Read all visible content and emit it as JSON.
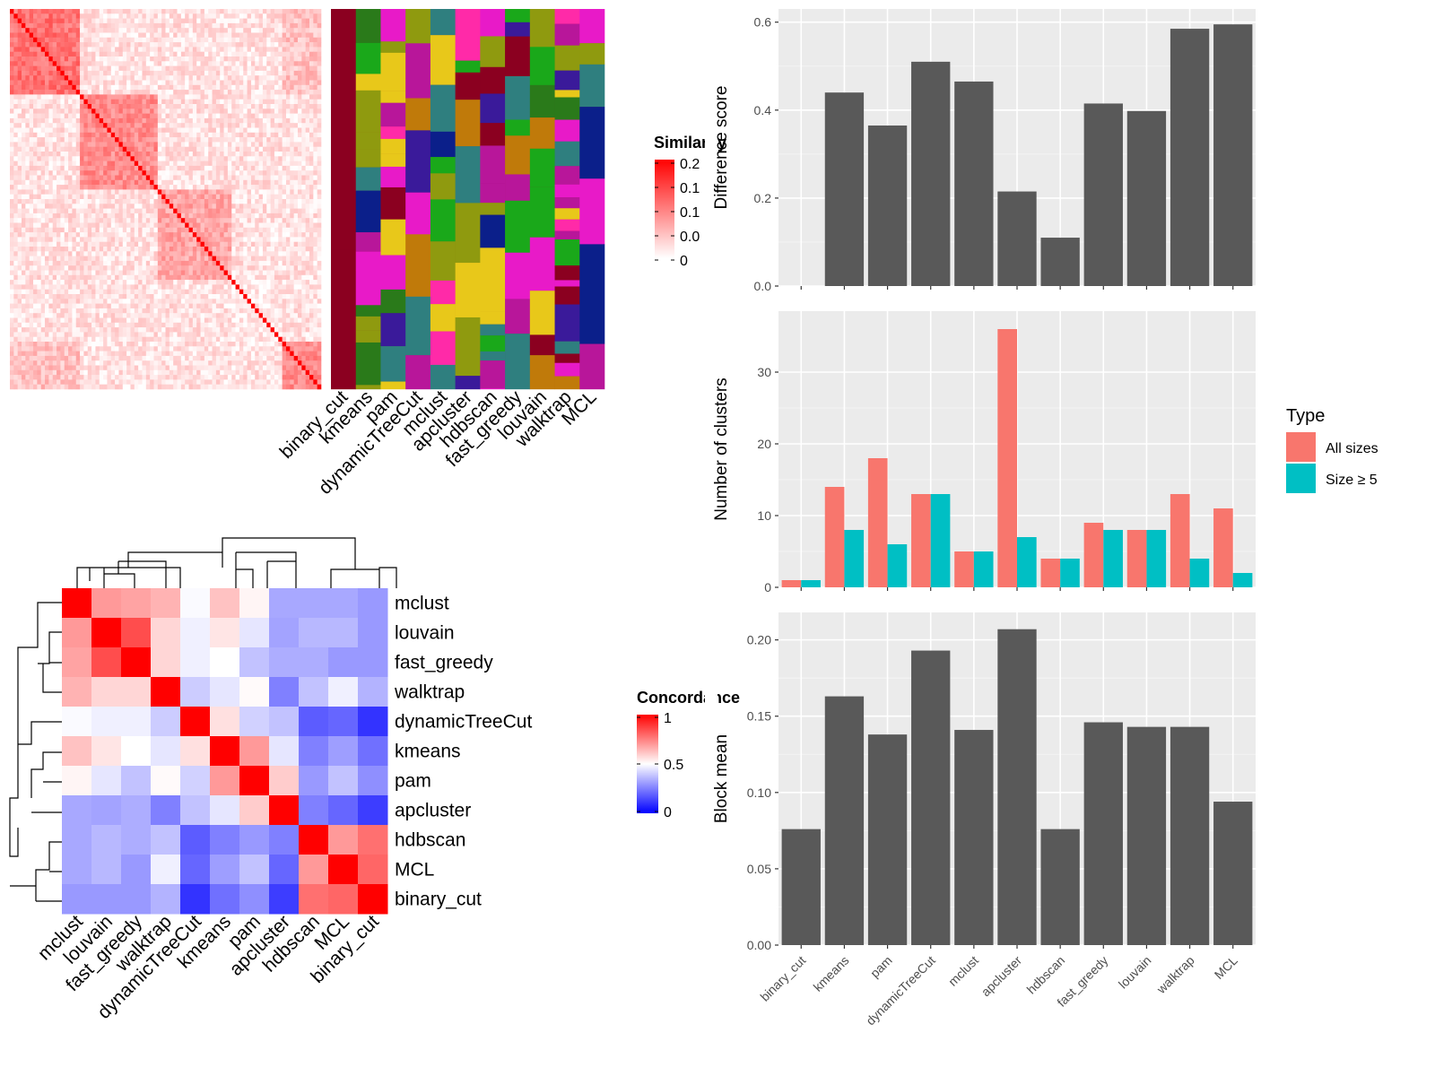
{
  "methods": [
    "binary_cut",
    "kmeans",
    "pam",
    "dynamicTreeCut",
    "mclust",
    "apcluster",
    "hdbscan",
    "fast_greedy",
    "louvain",
    "walktrap",
    "MCL"
  ],
  "chart_data": [
    {
      "id": "similarity_heatmap",
      "type": "heatmap",
      "legend_title": "Similarity",
      "legend_ticks": [
        "0.2",
        "0.1",
        "0.1",
        "0.0",
        "0"
      ],
      "colors": {
        "high": "#ff0000",
        "low": "#ffffff"
      },
      "diagonal_blocks": 5,
      "column_labels": [
        "binary_cut",
        "kmeans",
        "pam",
        "dynamicTreeCut",
        "mclust",
        "apcluster",
        "hdbscan",
        "fast_greedy",
        "louvain",
        "walktrap",
        "MCL"
      ]
    },
    {
      "id": "concordance_heatmap",
      "type": "heatmap",
      "legend_title": "Concordance",
      "legend_ticks": [
        "1",
        "0.5",
        "0"
      ],
      "rows": [
        "mclust",
        "louvain",
        "fast_greedy",
        "walktrap",
        "dynamicTreeCut",
        "kmeans",
        "pam",
        "apcluster",
        "hdbscan",
        "MCL",
        "binary_cut"
      ],
      "cols": [
        "mclust",
        "louvain",
        "fast_greedy",
        "walktrap",
        "dynamicTreeCut",
        "kmeans",
        "pam",
        "apcluster",
        "hdbscan",
        "MCL",
        "binary_cut"
      ],
      "values": [
        [
          1.0,
          0.7,
          0.68,
          0.65,
          0.49,
          0.62,
          0.52,
          0.33,
          0.33,
          0.33,
          0.3
        ],
        [
          0.7,
          1.0,
          0.85,
          0.58,
          0.47,
          0.55,
          0.45,
          0.32,
          0.36,
          0.36,
          0.3
        ],
        [
          0.68,
          0.85,
          1.0,
          0.58,
          0.47,
          0.5,
          0.38,
          0.34,
          0.34,
          0.3,
          0.3
        ],
        [
          0.65,
          0.58,
          0.58,
          1.0,
          0.4,
          0.45,
          0.51,
          0.25,
          0.38,
          0.47,
          0.35
        ],
        [
          0.49,
          0.47,
          0.47,
          0.4,
          1.0,
          0.56,
          0.41,
          0.38,
          0.18,
          0.2,
          0.1
        ],
        [
          0.62,
          0.55,
          0.5,
          0.45,
          0.56,
          1.0,
          0.7,
          0.45,
          0.25,
          0.31,
          0.22
        ],
        [
          0.52,
          0.45,
          0.38,
          0.51,
          0.41,
          0.7,
          1.0,
          0.6,
          0.3,
          0.38,
          0.28
        ],
        [
          0.33,
          0.32,
          0.34,
          0.25,
          0.38,
          0.45,
          0.6,
          1.0,
          0.25,
          0.2,
          0.12
        ],
        [
          0.33,
          0.36,
          0.34,
          0.38,
          0.18,
          0.25,
          0.3,
          0.25,
          1.0,
          0.7,
          0.78
        ],
        [
          0.33,
          0.36,
          0.3,
          0.47,
          0.2,
          0.31,
          0.38,
          0.2,
          0.7,
          1.0,
          0.8
        ],
        [
          0.3,
          0.3,
          0.3,
          0.35,
          0.1,
          0.22,
          0.28,
          0.12,
          0.78,
          0.8,
          1.0
        ]
      ],
      "colors": {
        "high": "#ff0000",
        "mid": "#ffffff",
        "low": "#0000ff"
      }
    },
    {
      "id": "difference_score",
      "type": "bar",
      "categories": [
        "binary_cut",
        "kmeans",
        "pam",
        "dynamicTreeCut",
        "mclust",
        "apcluster",
        "hdbscan",
        "fast_greedy",
        "louvain",
        "walktrap",
        "MCL"
      ],
      "values": [
        0,
        0.44,
        0.365,
        0.51,
        0.465,
        0.215,
        0.11,
        0.415,
        0.398,
        0.585,
        0.595
      ],
      "ylabel": "Difference score",
      "ylim": [
        0,
        0.63
      ],
      "yticks": [
        0.0,
        0.2,
        0.4,
        0.6
      ],
      "ytick_labels": [
        "0.0",
        "0.2",
        "0.4",
        "0.6"
      ],
      "bar_color": "#595959"
    },
    {
      "id": "number_of_clusters",
      "type": "bar",
      "categories": [
        "binary_cut",
        "kmeans",
        "pam",
        "dynamicTreeCut",
        "mclust",
        "apcluster",
        "hdbscan",
        "fast_greedy",
        "louvain",
        "walktrap",
        "MCL"
      ],
      "series": [
        {
          "name": "All sizes",
          "color": "#f8766d",
          "values": [
            1,
            14,
            18,
            13,
            5,
            36,
            4,
            9,
            8,
            13,
            11
          ]
        },
        {
          "name": "Size ≥ 5",
          "color": "#00bfc4",
          "values": [
            1,
            8,
            6,
            13,
            5,
            7,
            4,
            8,
            8,
            4,
            2
          ]
        }
      ],
      "ylabel": "Number of clusters",
      "ylim": [
        0,
        38.5
      ],
      "yticks": [
        0,
        10,
        20,
        30
      ],
      "ytick_labels": [
        "0",
        "10",
        "20",
        "30"
      ],
      "legend_title": "Type",
      "legend_position": "right"
    },
    {
      "id": "block_mean",
      "type": "bar",
      "categories": [
        "binary_cut",
        "kmeans",
        "pam",
        "dynamicTreeCut",
        "mclust",
        "apcluster",
        "hdbscan",
        "fast_greedy",
        "louvain",
        "walktrap",
        "MCL"
      ],
      "values": [
        0.076,
        0.163,
        0.138,
        0.193,
        0.141,
        0.207,
        0.076,
        0.146,
        0.143,
        0.143,
        0.094
      ],
      "ylabel": "Block mean",
      "ylim": [
        0,
        0.218
      ],
      "yticks": [
        0.0,
        0.05,
        0.1,
        0.15,
        0.2
      ],
      "ytick_labels": [
        "0.00",
        "0.05",
        "0.10",
        "0.15",
        "0.20"
      ],
      "bar_color": "#595959"
    }
  ]
}
